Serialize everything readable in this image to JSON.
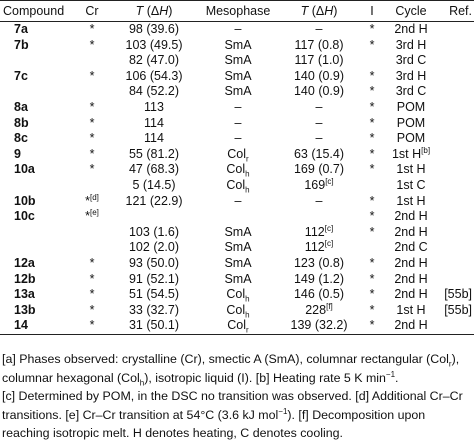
{
  "headers": {
    "compound": "Compound",
    "cr": "Cr",
    "t1": "T (ΔH)",
    "mesophase": "Mesophase",
    "t2": "T (ΔH)",
    "i": "I",
    "cycle": "Cycle",
    "ref": "Ref."
  },
  "rows": [
    {
      "compound": "7a",
      "cr": "*",
      "t1": "98 (39.6)",
      "meso": "–",
      "t2": "–",
      "i": "*",
      "cycle": "2nd H",
      "ref": ""
    },
    {
      "compound": "7b",
      "cr": "*",
      "t1": "103 (49.5)",
      "meso": "SmA",
      "t2": "117 (0.8)",
      "i": "*",
      "cycle": "3rd H",
      "ref": ""
    },
    {
      "compound": "",
      "cr": "",
      "t1": "82 (47.0)",
      "meso": "SmA",
      "t2": "117 (1.0)",
      "i": "",
      "cycle": "3rd C",
      "ref": ""
    },
    {
      "compound": "7c",
      "cr": "*",
      "t1": "106 (54.3)",
      "meso": "SmA",
      "t2": "140 (0.9)",
      "i": "*",
      "cycle": "3rd H",
      "ref": ""
    },
    {
      "compound": "",
      "cr": "",
      "t1": "84 (52.2)",
      "meso": "SmA",
      "t2": "140 (0.9)",
      "i": "*",
      "cycle": "3rd C",
      "ref": ""
    },
    {
      "compound": "8a",
      "cr": "*",
      "t1": "113",
      "meso": "–",
      "t2": "–",
      "i": "*",
      "cycle": "POM",
      "ref": ""
    },
    {
      "compound": "8b",
      "cr": "*",
      "t1": "114",
      "meso": "–",
      "t2": "–",
      "i": "*",
      "cycle": "POM",
      "ref": ""
    },
    {
      "compound": "8c",
      "cr": "*",
      "t1": "114",
      "meso": "–",
      "t2": "–",
      "i": "*",
      "cycle": "POM",
      "ref": ""
    },
    {
      "compound": "9",
      "cr": "*",
      "t1": "55 (81.2)",
      "meso": "Col",
      "meso_sub": "r",
      "t2": "63 (15.4)",
      "i": "*",
      "cycle": "1st H",
      "cycle_sup": "[b]",
      "ref": ""
    },
    {
      "compound": "10a",
      "cr": "*",
      "t1": "47 (68.3)",
      "meso": "Col",
      "meso_sub": "h",
      "t2": "169 (0.7)",
      "i": "*",
      "cycle": "1st H",
      "ref": ""
    },
    {
      "compound": "",
      "cr": "",
      "t1": "5 (14.5)",
      "meso": "Col",
      "meso_sub": "h",
      "t2": "169",
      "t2_sup": "[c]",
      "i": "",
      "cycle": "1st C",
      "ref": ""
    },
    {
      "compound": "10b",
      "cr": "*",
      "cr_sup": "[d]",
      "t1": "121 (22.9)",
      "meso": "–",
      "t2": "–",
      "i": "*",
      "cycle": "1st H",
      "ref": ""
    },
    {
      "compound": "10c",
      "cr": "*",
      "cr_sup": "[e]",
      "t1": "",
      "meso": "",
      "t2": "",
      "i": "*",
      "cycle": "2nd H",
      "ref": ""
    },
    {
      "compound": "",
      "cr": "",
      "t1": "103 (1.6)",
      "meso": "SmA",
      "t2": "112",
      "t2_sup": "[c]",
      "i": "*",
      "cycle": "2nd H",
      "ref": ""
    },
    {
      "compound": "",
      "cr": "",
      "t1": "102 (2.0)",
      "meso": "SmA",
      "t2": "112",
      "t2_sup": "[c]",
      "i": "",
      "cycle": "2nd C",
      "ref": ""
    },
    {
      "compound": "12a",
      "cr": "*",
      "t1": "93 (50.0)",
      "meso": "SmA",
      "t2": "123 (0.8)",
      "i": "*",
      "cycle": "2nd H",
      "ref": ""
    },
    {
      "compound": "12b",
      "cr": "*",
      "t1": "91 (52.1)",
      "meso": "SmA",
      "t2": "149 (1.2)",
      "i": "*",
      "cycle": "2nd H",
      "ref": ""
    },
    {
      "compound": "13a",
      "cr": "*",
      "t1": "51 (54.5)",
      "meso": "Col",
      "meso_sub": "h",
      "t2": "146 (0.5)",
      "i": "*",
      "cycle": "2nd H",
      "ref": "[55b]"
    },
    {
      "compound": "13b",
      "cr": "*",
      "t1": "33 (32.7)",
      "meso": "Col",
      "meso_sub": "h",
      "t2": "228",
      "t2_sup": "[f]",
      "i": "*",
      "cycle": "1st H",
      "ref": "[55b]"
    },
    {
      "compound": "14",
      "cr": "*",
      "t1": "31 (50.1)",
      "meso": "Col",
      "meso_sub": "r",
      "t2": "139 (32.2)",
      "i": "*",
      "cycle": "2nd H",
      "ref": ""
    }
  ],
  "notes": {
    "line1": "[a] Phases observed: crystalline (Cr), smectic A (SmA), columnar rectangular (Col",
    "line1_sub": "r",
    "line1_end": "),",
    "line2a": "columnar hexagonal (Col",
    "line2_sub": "h",
    "line2b": "), isotropic liquid (I). [b] Heating rate 5 K min",
    "line2_sup": "−1",
    "line2c": ".",
    "line3": "[c] Determined by POM, in the DSC no transition was observed. [d] Additional Cr–Cr",
    "line4a": "transitions. [e] Cr–Cr transition at 54°C (3.6 kJ mol",
    "line4_sup": "−1",
    "line4b": "). [f] Decomposition upon",
    "line5": "reaching isotropic melt. H denotes heating, C denotes cooling."
  }
}
